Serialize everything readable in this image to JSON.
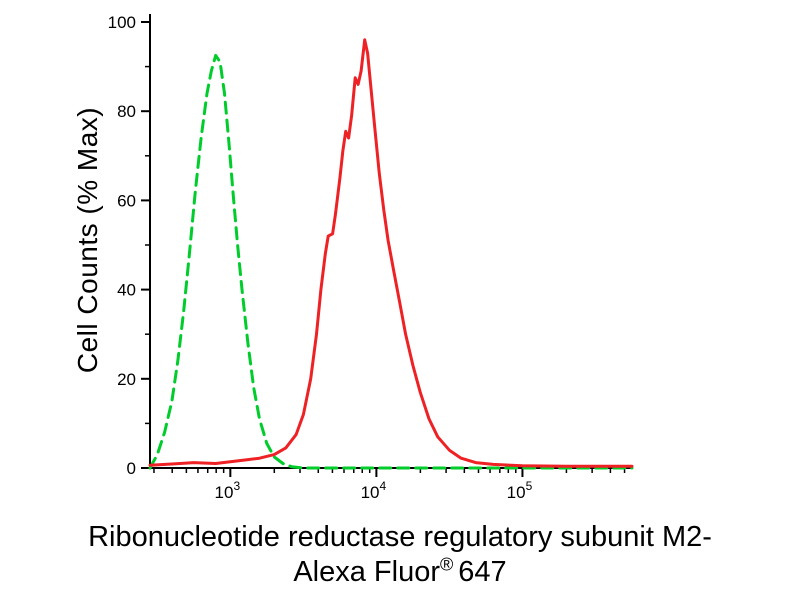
{
  "title": {
    "line1": "Ribonucleotide reductase regulatory subunit M2-",
    "line2_prefix": "Alexa Fluor",
    "line2_reg": "®",
    "line2_suffix": "647"
  },
  "chart_data": {
    "type": "line",
    "title": "",
    "xlabel": "Ribonucleotide reductase regulatory subunit M2-Alexa Fluor® 647",
    "ylabel": "Cell Counts (% Max)",
    "x_scale": "log10",
    "xlog_range": [
      2.45,
      5.75
    ],
    "ylim": [
      0,
      100
    ],
    "yticks": [
      0,
      20,
      40,
      60,
      80,
      100
    ],
    "yticks_minor": [
      10,
      30,
      50,
      70,
      90
    ],
    "xticks": [
      {
        "base": "10",
        "exp": "3",
        "log": 3
      },
      {
        "base": "10",
        "exp": "4",
        "log": 4
      },
      {
        "base": "10",
        "exp": "5",
        "log": 5
      }
    ],
    "grid": false,
    "legend": "none",
    "series": [
      {
        "name": "green-dashed",
        "style": "dashed",
        "color": "#00cc2c",
        "dash": "11 7",
        "peak_log10x": 2.9,
        "peak_pct": 92.5,
        "points": [
          [
            2.45,
            0
          ],
          [
            2.5,
            3
          ],
          [
            2.55,
            8
          ],
          [
            2.6,
            15
          ],
          [
            2.64,
            24
          ],
          [
            2.68,
            35
          ],
          [
            2.72,
            48
          ],
          [
            2.76,
            62
          ],
          [
            2.8,
            74
          ],
          [
            2.84,
            84
          ],
          [
            2.87,
            89
          ],
          [
            2.9,
            92.5
          ],
          [
            2.93,
            91
          ],
          [
            2.96,
            84
          ],
          [
            2.99,
            73
          ],
          [
            3.02,
            61
          ],
          [
            3.05,
            50
          ],
          [
            3.08,
            40
          ],
          [
            3.12,
            28
          ],
          [
            3.16,
            18
          ],
          [
            3.2,
            11
          ],
          [
            3.25,
            5.5
          ],
          [
            3.3,
            2.5
          ],
          [
            3.36,
            1
          ],
          [
            3.42,
            0.3
          ],
          [
            3.5,
            0
          ],
          [
            5.75,
            0
          ]
        ]
      },
      {
        "name": "red-solid",
        "style": "solid",
        "color": "#ee2124",
        "dash": "",
        "peak_log10x": 3.92,
        "peak_pct": 96,
        "points": [
          [
            2.45,
            0.6
          ],
          [
            2.6,
            0.9
          ],
          [
            2.75,
            1.2
          ],
          [
            2.9,
            1.0
          ],
          [
            3.0,
            1.4
          ],
          [
            3.1,
            1.8
          ],
          [
            3.2,
            2.2
          ],
          [
            3.3,
            3.0
          ],
          [
            3.38,
            4.5
          ],
          [
            3.45,
            7.5
          ],
          [
            3.5,
            12
          ],
          [
            3.55,
            20
          ],
          [
            3.59,
            30
          ],
          [
            3.62,
            40
          ],
          [
            3.65,
            48
          ],
          [
            3.67,
            52
          ],
          [
            3.7,
            52.5
          ],
          [
            3.72,
            57
          ],
          [
            3.75,
            65
          ],
          [
            3.77,
            71
          ],
          [
            3.79,
            75.5
          ],
          [
            3.81,
            74
          ],
          [
            3.83,
            79
          ],
          [
            3.855,
            87.5
          ],
          [
            3.875,
            86
          ],
          [
            3.895,
            89
          ],
          [
            3.92,
            96
          ],
          [
            3.94,
            93
          ],
          [
            3.96,
            86
          ],
          [
            3.99,
            76
          ],
          [
            4.02,
            66
          ],
          [
            4.05,
            58
          ],
          [
            4.08,
            51
          ],
          [
            4.12,
            44
          ],
          [
            4.16,
            37
          ],
          [
            4.2,
            30
          ],
          [
            4.25,
            23
          ],
          [
            4.3,
            17
          ],
          [
            4.36,
            11
          ],
          [
            4.42,
            7
          ],
          [
            4.5,
            4
          ],
          [
            4.58,
            2.2
          ],
          [
            4.68,
            1.2
          ],
          [
            4.8,
            0.8
          ],
          [
            5.0,
            0.5
          ],
          [
            5.3,
            0.4
          ],
          [
            5.75,
            0.4
          ]
        ]
      }
    ]
  }
}
